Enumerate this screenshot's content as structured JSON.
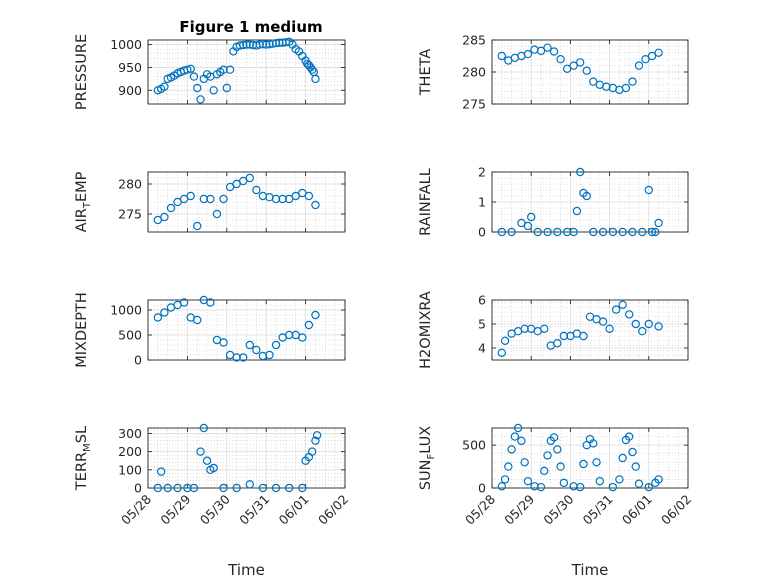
{
  "figure": {
    "title": "Figure 1 medium",
    "marker_color": "#0072BD",
    "background": "#ffffff"
  },
  "chart_data": [
    {
      "type": "scatter",
      "ylabel_main": "PRESSURE",
      "ylabel_sub": "",
      "ylabel_tail": "",
      "ylim": [
        870,
        1010
      ],
      "yticks": [
        900,
        950,
        1000
      ],
      "show_xticks": false,
      "title": "Figure 1 medium",
      "series": [
        {
          "x": [
            "05/28 06:00",
            "05/28 08:00",
            "05/28 10:00",
            "05/28 12:00",
            "05/28 14:00",
            "05/28 16:00",
            "05/28 18:00",
            "05/28 20:00",
            "05/28 22:00",
            "05/29 00:00",
            "05/29 02:00",
            "05/29 04:00",
            "05/29 06:00",
            "05/29 08:00",
            "05/29 10:00",
            "05/29 12:00",
            "05/29 14:00",
            "05/29 16:00",
            "05/29 18:00",
            "05/29 20:00",
            "05/29 22:00",
            "05/30 00:00",
            "05/30 02:00",
            "05/30 04:00",
            "05/30 06:00",
            "05/30 08:00",
            "05/30 10:00",
            "05/30 12:00",
            "05/30 14:00",
            "05/30 16:00",
            "05/30 18:00",
            "05/30 20:00",
            "05/30 22:00",
            "05/31 00:00",
            "05/31 02:00",
            "05/31 04:00",
            "05/31 06:00",
            "05/31 08:00",
            "05/31 10:00",
            "05/31 12:00",
            "05/31 14:00",
            "05/31 16:00",
            "05/31 18:00",
            "05/31 20:00",
            "05/31 22:00",
            "06/01 00:00",
            "06/01 01:00",
            "06/01 02:00",
            "06/01 03:00",
            "06/01 04:00",
            "06/01 05:00",
            "06/01 06:00"
          ],
          "y": [
            900,
            903,
            908,
            925,
            928,
            932,
            937,
            940,
            943,
            945,
            947,
            930,
            905,
            880,
            925,
            935,
            930,
            900,
            935,
            940,
            945,
            905,
            945,
            985,
            995,
            998,
            999,
            1000,
            1000,
            999,
            998,
            1000,
            1001,
            1000,
            1001,
            1002,
            1003,
            1004,
            1004,
            1005,
            1006,
            1000,
            990,
            985,
            975,
            965,
            958,
            955,
            950,
            945,
            940,
            925
          ]
        }
      ]
    },
    {
      "type": "scatter",
      "ylabel_main": "THETA",
      "ylabel_sub": "",
      "ylabel_tail": "",
      "ylim": [
        275,
        285
      ],
      "yticks": [
        275,
        280,
        285
      ],
      "show_xticks": false,
      "series": [
        {
          "x": [
            "05/28 06:00",
            "05/28 10:00",
            "05/28 14:00",
            "05/28 18:00",
            "05/28 22:00",
            "05/29 02:00",
            "05/29 06:00",
            "05/29 10:00",
            "05/29 14:00",
            "05/29 18:00",
            "05/29 22:00",
            "05/30 02:00",
            "05/30 06:00",
            "05/30 10:00",
            "05/30 14:00",
            "05/30 18:00",
            "05/30 22:00",
            "05/31 02:00",
            "05/31 06:00",
            "05/31 10:00",
            "05/31 14:00",
            "05/31 18:00",
            "05/31 22:00",
            "06/01 02:00",
            "06/01 06:00"
          ],
          "y": [
            282.5,
            281.8,
            282.2,
            282.5,
            282.8,
            283.5,
            283.3,
            283.8,
            283.2,
            282.0,
            280.5,
            281.0,
            281.5,
            280.2,
            278.5,
            278.0,
            277.7,
            277.5,
            277.2,
            277.5,
            278.5,
            281.0,
            282.0,
            282.5,
            283.0
          ]
        }
      ]
    },
    {
      "type": "scatter",
      "ylabel_main": "AIR",
      "ylabel_sub": "T",
      "ylabel_tail": "EMP",
      "ylim": [
        272,
        282
      ],
      "yticks": [
        275,
        280
      ],
      "show_xticks": false,
      "series": [
        {
          "x": [
            "05/28 06:00",
            "05/28 10:00",
            "05/28 14:00",
            "05/28 18:00",
            "05/28 22:00",
            "05/29 02:00",
            "05/29 06:00",
            "05/29 10:00",
            "05/29 14:00",
            "05/29 18:00",
            "05/29 22:00",
            "05/30 02:00",
            "05/30 06:00",
            "05/30 10:00",
            "05/30 14:00",
            "05/30 18:00",
            "05/30 22:00",
            "05/31 02:00",
            "05/31 06:00",
            "05/31 10:00",
            "05/31 14:00",
            "05/31 18:00",
            "05/31 22:00",
            "06/01 02:00",
            "06/01 06:00"
          ],
          "y": [
            274.0,
            274.5,
            276.0,
            277.0,
            277.5,
            278.0,
            273.0,
            277.5,
            277.5,
            275.0,
            277.5,
            279.5,
            280.0,
            280.5,
            281.0,
            279.0,
            278.0,
            277.8,
            277.5,
            277.5,
            277.5,
            278.0,
            278.5,
            278.0,
            276.5
          ]
        }
      ]
    },
    {
      "type": "scatter",
      "ylabel_main": "RAINFALL",
      "ylabel_sub": "",
      "ylabel_tail": "",
      "ylim": [
        0,
        2
      ],
      "yticks": [
        0,
        1,
        2
      ],
      "show_xticks": false,
      "series": [
        {
          "x": [
            "05/28 06:00",
            "05/28 12:00",
            "05/28 18:00",
            "05/28 22:00",
            "05/29 00:00",
            "05/29 04:00",
            "05/29 10:00",
            "05/29 16:00",
            "05/29 22:00",
            "05/30 02:00",
            "05/30 04:00",
            "05/30 06:00",
            "05/30 08:00",
            "05/30 10:00",
            "05/30 14:00",
            "05/30 20:00",
            "05/31 02:00",
            "05/31 08:00",
            "05/31 14:00",
            "05/31 20:00",
            "06/01 00:00",
            "06/01 02:00",
            "06/01 04:00",
            "06/01 06:00"
          ],
          "y": [
            0,
            0,
            0.3,
            0.2,
            0.5,
            0,
            0,
            0,
            0,
            0,
            0.7,
            2.0,
            1.3,
            1.2,
            0,
            0,
            0,
            0,
            0,
            0,
            1.4,
            0,
            0,
            0.3
          ]
        }
      ]
    },
    {
      "type": "scatter",
      "ylabel_main": "MIXDEPTH",
      "ylabel_sub": "",
      "ylabel_tail": "",
      "ylim": [
        0,
        1200
      ],
      "yticks": [
        0,
        500,
        1000
      ],
      "show_xticks": false,
      "series": [
        {
          "x": [
            "05/28 06:00",
            "05/28 10:00",
            "05/28 14:00",
            "05/28 18:00",
            "05/28 22:00",
            "05/29 02:00",
            "05/29 06:00",
            "05/29 10:00",
            "05/29 14:00",
            "05/29 18:00",
            "05/29 22:00",
            "05/30 02:00",
            "05/30 06:00",
            "05/30 10:00",
            "05/30 14:00",
            "05/30 18:00",
            "05/30 22:00",
            "05/31 02:00",
            "05/31 06:00",
            "05/31 10:00",
            "05/31 14:00",
            "05/31 18:00",
            "05/31 22:00",
            "06/01 02:00",
            "06/01 06:00"
          ],
          "y": [
            850,
            950,
            1050,
            1100,
            1150,
            850,
            800,
            1200,
            1150,
            400,
            350,
            100,
            50,
            50,
            300,
            200,
            80,
            100,
            300,
            450,
            500,
            500,
            450,
            700,
            900
          ]
        }
      ]
    },
    {
      "type": "scatter",
      "ylabel_main": "H2OMIXRA",
      "ylabel_sub": "",
      "ylabel_tail": "",
      "ylim": [
        3.5,
        6
      ],
      "yticks": [
        4,
        5,
        6
      ],
      "show_xticks": false,
      "series": [
        {
          "x": [
            "05/28 06:00",
            "05/28 08:00",
            "05/28 12:00",
            "05/28 16:00",
            "05/28 20:00",
            "05/29 00:00",
            "05/29 04:00",
            "05/29 08:00",
            "05/29 12:00",
            "05/29 16:00",
            "05/29 20:00",
            "05/30 00:00",
            "05/30 04:00",
            "05/30 08:00",
            "05/30 12:00",
            "05/30 16:00",
            "05/30 20:00",
            "05/31 00:00",
            "05/31 04:00",
            "05/31 08:00",
            "05/31 12:00",
            "05/31 16:00",
            "05/31 20:00",
            "06/01 00:00",
            "06/01 06:00"
          ],
          "y": [
            3.8,
            4.3,
            4.6,
            4.7,
            4.8,
            4.8,
            4.7,
            4.8,
            4.1,
            4.2,
            4.5,
            4.5,
            4.6,
            4.5,
            5.3,
            5.2,
            5.1,
            4.8,
            5.6,
            5.8,
            5.4,
            5.0,
            4.7,
            5.0,
            4.9
          ]
        }
      ]
    },
    {
      "type": "scatter",
      "ylabel_main": "TERR",
      "ylabel_sub": "M",
      "ylabel_tail": "SL",
      "ylim": [
        0,
        330
      ],
      "yticks": [
        0,
        100,
        200,
        300
      ],
      "show_xticks": true,
      "series": [
        {
          "x": [
            "05/28 06:00",
            "05/28 08:00",
            "05/28 12:00",
            "05/28 18:00",
            "05/29 00:00",
            "05/29 04:00",
            "05/29 08:00",
            "05/29 10:00",
            "05/29 12:00",
            "05/29 14:00",
            "05/29 16:00",
            "05/29 22:00",
            "05/30 06:00",
            "05/30 14:00",
            "05/30 22:00",
            "05/31 06:00",
            "05/31 14:00",
            "05/31 22:00",
            "06/01 00:00",
            "06/01 02:00",
            "06/01 04:00",
            "06/01 06:00",
            "06/01 07:00"
          ],
          "y": [
            0,
            90,
            0,
            0,
            0,
            0,
            200,
            330,
            150,
            100,
            110,
            0,
            0,
            20,
            0,
            0,
            0,
            0,
            150,
            170,
            200,
            260,
            290
          ]
        }
      ]
    },
    {
      "type": "scatter",
      "ylabel_main": "SUN",
      "ylabel_sub": "F",
      "ylabel_tail": "LUX",
      "ylim": [
        0,
        700
      ],
      "yticks": [
        0,
        500
      ],
      "show_xticks": true,
      "series": [
        {
          "x": [
            "05/28 06:00",
            "05/28 08:00",
            "05/28 10:00",
            "05/28 12:00",
            "05/28 14:00",
            "05/28 16:00",
            "05/28 18:00",
            "05/28 20:00",
            "05/28 22:00",
            "05/29 02:00",
            "05/29 06:00",
            "05/29 08:00",
            "05/29 10:00",
            "05/29 12:00",
            "05/29 14:00",
            "05/29 16:00",
            "05/29 18:00",
            "05/29 20:00",
            "05/30 02:00",
            "05/30 06:00",
            "05/30 08:00",
            "05/30 10:00",
            "05/30 12:00",
            "05/30 14:00",
            "05/30 16:00",
            "05/30 18:00",
            "05/31 02:00",
            "05/31 06:00",
            "05/31 08:00",
            "05/31 10:00",
            "05/31 12:00",
            "05/31 14:00",
            "05/31 16:00",
            "05/31 18:00",
            "06/01 00:00",
            "06/01 04:00",
            "06/01 06:00"
          ],
          "y": [
            20,
            100,
            250,
            450,
            600,
            700,
            550,
            300,
            80,
            20,
            10,
            200,
            380,
            550,
            590,
            450,
            250,
            60,
            20,
            10,
            280,
            500,
            570,
            520,
            300,
            80,
            10,
            100,
            350,
            560,
            600,
            420,
            250,
            50,
            10,
            60,
            100
          ]
        }
      ]
    }
  ],
  "x_axis": {
    "label": "Time",
    "ticks": [
      "05/28",
      "05/29",
      "05/30",
      "05/31",
      "06/01",
      "06/02"
    ]
  }
}
